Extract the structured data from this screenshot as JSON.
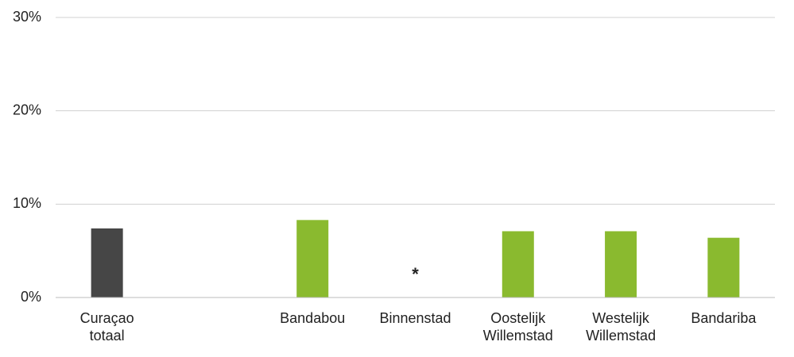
{
  "chart_data": {
    "type": "bar",
    "categories": [
      "Curaçao totaal",
      null,
      "Bandabou",
      "Binnenstad",
      "Oostelijk Willemstad",
      "Westelijk Willemstad",
      "Bandariba"
    ],
    "values": [
      7.4,
      null,
      8.3,
      null,
      7.1,
      7.1,
      6.4
    ],
    "colors": [
      "#464646",
      null,
      "#8aba2f",
      null,
      "#8aba2f",
      "#8aba2f",
      "#8aba2f"
    ],
    "annotations": [
      {
        "text": "*",
        "category": "Binnenstad"
      }
    ],
    "ylim": [
      0,
      30
    ],
    "yticks": [
      {
        "value": 0,
        "label": "0%"
      },
      {
        "value": 10,
        "label": "10%"
      },
      {
        "value": 20,
        "label": "20%"
      },
      {
        "value": 30,
        "label": "30%"
      }
    ],
    "grid": true
  }
}
